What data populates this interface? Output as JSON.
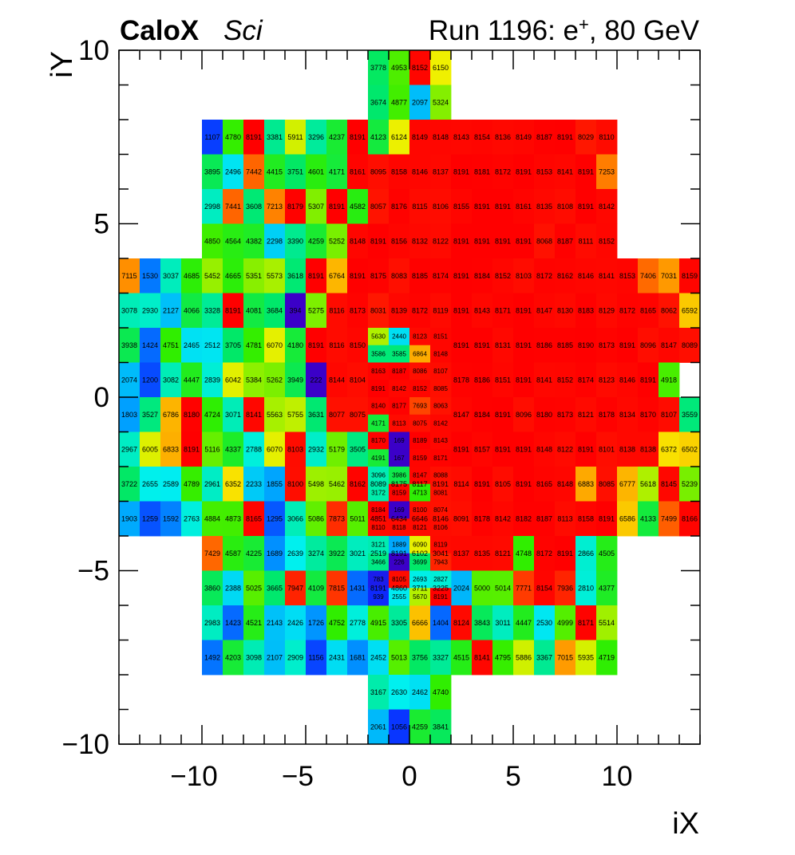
{
  "header": {
    "experiment": "CaloX",
    "subtitle": "Sci",
    "run_label": "Run 1196: e",
    "run_sup": "+",
    "run_energy": ", 80 GeV"
  },
  "chart_data": {
    "type": "heatmap",
    "title": "",
    "xlabel": "iX",
    "ylabel": "iY",
    "xlim": [
      -14,
      14
    ],
    "ylim": [
      -10,
      10
    ],
    "xticks": [
      "−10",
      "−5",
      "0",
      "5",
      "10"
    ],
    "xtick_values": [
      -10,
      -5,
      0,
      5,
      10
    ],
    "yticks": [
      "−10",
      "−5",
      "0",
      "5",
      "10"
    ],
    "ytick_values": [
      -10,
      -5,
      0,
      5,
      10
    ],
    "colorscale": "rainbow",
    "zmax": 8191,
    "rows": [
      {
        "iy": 9,
        "x0": -2,
        "values": [
          3778,
          4953,
          8152,
          6150
        ]
      },
      {
        "iy": 8,
        "x0": -2,
        "values": [
          3674,
          4877,
          2097,
          5324
        ]
      },
      {
        "iy": 7,
        "x0": -10,
        "values": [
          1107,
          4780,
          8191,
          3381,
          5911,
          3296,
          4237,
          8191,
          4123,
          6124,
          8149,
          8148,
          8143,
          8154,
          8136,
          8149,
          8187,
          8191,
          8029,
          8110
        ]
      },
      {
        "iy": 6,
        "x0": -10,
        "values": [
          3895,
          2496,
          7442,
          4415,
          3751,
          4601,
          4171,
          8161,
          8095,
          8158,
          8146,
          8137,
          8191,
          8181,
          8172,
          8191,
          8153,
          8141,
          8191,
          7253
        ]
      },
      {
        "iy": 5,
        "x0": -10,
        "values": [
          2998,
          7441,
          3608,
          7213,
          8179,
          5307,
          8191,
          4582,
          8057,
          8176,
          8115,
          8106,
          8155,
          8191,
          8191,
          8161,
          8135,
          8108,
          8191,
          8142
        ]
      },
      {
        "iy": 4,
        "x0": -10,
        "values": [
          4850,
          4564,
          4382,
          2298,
          3390,
          4259,
          5252,
          8148,
          8191,
          8156,
          8132,
          8122,
          8191,
          8191,
          8191,
          8191,
          8068,
          8187,
          8111,
          8152
        ]
      },
      {
        "iy": 3,
        "x0": -14,
        "values": [
          7115,
          1530,
          3037,
          4685,
          5452,
          4665,
          5351,
          5573,
          3618,
          8191,
          6764,
          8191,
          8175,
          8083,
          8185,
          8174,
          8191,
          8184,
          8152,
          8103,
          8172,
          8162,
          8146,
          8141,
          8153,
          7406,
          7031,
          8159
        ]
      },
      {
        "iy": 2,
        "x0": -14,
        "values": [
          3078,
          2930,
          2127,
          4066,
          3328,
          8191,
          4081,
          3684,
          394,
          5275,
          8116,
          8173,
          8031,
          8139,
          8172,
          8119,
          8191,
          8143,
          8171,
          8191,
          8147,
          8130,
          8183,
          8129,
          8172,
          8165,
          8062,
          6592
        ]
      },
      {
        "iy": 1,
        "x0": -14,
        "values": [
          3938,
          1424,
          4751,
          2465,
          2512,
          3705,
          4781,
          6070,
          4180,
          8191,
          8116,
          8150,
          null,
          null,
          null,
          null,
          8191,
          8191,
          8131,
          8191,
          8186,
          8185,
          8190,
          8173,
          8191,
          8096,
          8147,
          8089
        ]
      },
      {
        "iy": 0,
        "x0": -14,
        "values": [
          2074,
          1200,
          3082,
          4447,
          2839,
          6042,
          5384,
          5262,
          3949,
          222,
          8144,
          8104,
          null,
          null,
          null,
          null,
          8178,
          8186,
          8151,
          8191,
          8141,
          8152,
          8174,
          8123,
          8146,
          8191,
          4918
        ]
      },
      {
        "iy": -1,
        "x0": -14,
        "values": [
          1803,
          3527,
          6786,
          8180,
          4724,
          3071,
          8141,
          5563,
          5755,
          3631,
          8077,
          8075,
          null,
          null,
          null,
          null,
          8147,
          8184,
          8191,
          8096,
          8180,
          8173,
          8121,
          8178,
          8134,
          8170,
          8107,
          3559
        ]
      },
      {
        "iy": -2,
        "x0": -14,
        "values": [
          2967,
          6005,
          6833,
          8191,
          5116,
          4337,
          2788,
          6070,
          8103,
          2932,
          5179,
          3505,
          null,
          null,
          null,
          null,
          8191,
          8157,
          8191,
          8191,
          8148,
          8122,
          8191,
          8101,
          8138,
          8138,
          6372,
          6502
        ]
      },
      {
        "iy": -3,
        "x0": -14,
        "values": [
          3722,
          2655,
          2589,
          4789,
          2961,
          6352,
          2233,
          1855,
          8100,
          5498,
          5462,
          8162,
          8089,
          8175,
          8117,
          8191,
          8114,
          8191,
          8105,
          8191,
          8165,
          8148,
          6883,
          8085,
          6777,
          5618,
          8145,
          5239
        ]
      },
      {
        "iy": -4,
        "x0": -14,
        "values": [
          1903,
          1259,
          1592,
          2763,
          4884,
          4873,
          8165,
          1295,
          3066,
          5086,
          7873,
          5011,
          4851,
          6434,
          6646,
          8146,
          8091,
          8178,
          8142,
          8182,
          8187,
          8113,
          8158,
          8191,
          6586,
          4133,
          7499,
          8166
        ]
      },
      {
        "iy": -5,
        "x0": -10,
        "values": [
          7429,
          4587,
          4225,
          1689,
          2639,
          3274,
          3922,
          3021,
          2519,
          8191,
          6102,
          3041,
          8137,
          8135,
          8121,
          4748,
          8172,
          8191,
          2866,
          4505
        ]
      },
      {
        "iy": -6,
        "x0": -10,
        "values": [
          3860,
          2388,
          5025,
          3665,
          7947,
          4109,
          7815,
          1431,
          8191,
          4860,
          3711,
          3225,
          2024,
          5000,
          5014,
          7771,
          8154,
          7936,
          2810,
          4377
        ]
      },
      {
        "iy": -7,
        "x0": -10,
        "values": [
          2983,
          1423,
          4521,
          2143,
          2426,
          1726,
          4752,
          2778,
          4915,
          3305,
          6666,
          1404,
          8124,
          3843,
          3011,
          4447,
          2530,
          4999,
          8171,
          5514
        ]
      },
      {
        "iy": -8,
        "x0": -10,
        "values": [
          1492,
          4203,
          3098,
          2107,
          2909,
          1156,
          2431,
          1681,
          2452,
          5013,
          3756,
          3327,
          4515,
          8141,
          4795,
          5886,
          3367,
          7015,
          5935,
          4719
        ]
      },
      {
        "iy": -9,
        "x0": -2,
        "values": [
          3167,
          2630,
          2462,
          4740
        ]
      },
      {
        "iy": -10,
        "x0": -2,
        "values": [
          2061,
          1056,
          4259,
          3841
        ]
      }
    ],
    "fine_cells": {
      "x0": -2,
      "y_top": 2,
      "step": 0.5,
      "values": [
        [
          5630,
          2440,
          8123,
          8151
        ],
        [
          3586,
          3585,
          6864,
          8148
        ],
        [
          8163,
          8187,
          8086,
          8107
        ],
        [
          8191,
          8142,
          8152,
          8085
        ],
        [
          8140,
          8177,
          7693,
          8063
        ],
        [
          4171,
          8113,
          8075,
          8142
        ],
        [
          8170,
          169,
          8189,
          8143
        ],
        [
          4191,
          167,
          8159,
          8171
        ],
        [
          3096,
          3986,
          8147,
          8088
        ],
        [
          3172,
          8159,
          4713,
          8081
        ],
        [
          8184,
          169,
          8100,
          8074
        ],
        [
          8110,
          8118,
          8121,
          8106
        ],
        [
          3121,
          1889,
          6090,
          8119
        ],
        [
          3466,
          226,
          3699,
          7943
        ],
        [
          783,
          8105,
          2693,
          2827
        ],
        [
          939,
          2555,
          5670,
          8191
        ]
      ]
    }
  }
}
